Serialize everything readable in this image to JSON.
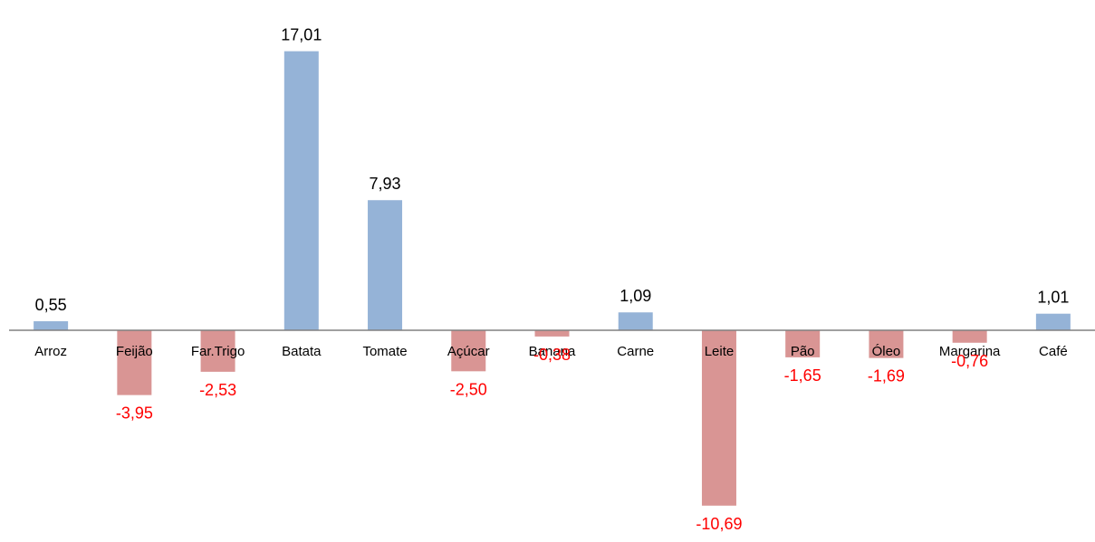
{
  "chart_data": {
    "type": "bar",
    "title": "",
    "xlabel": "",
    "ylabel": "",
    "categories": [
      "Arroz",
      "Feijão",
      "Far.Trigo",
      "Batata",
      "Tomate",
      "Açúcar",
      "Banana",
      "Carne",
      "Leite",
      "Pão",
      "Óleo",
      "Margarina",
      "Café"
    ],
    "values": [
      0.55,
      -3.95,
      -2.53,
      17.01,
      7.93,
      -2.5,
      -0.38,
      1.09,
      -10.69,
      -1.65,
      -1.69,
      -0.76,
      1.01
    ],
    "value_labels": [
      "0,55",
      "-3,95",
      "-2,53",
      "17,01",
      "7,93",
      "-2,50",
      "-0,38",
      "1,09",
      "-10,69",
      "-1,65",
      "-1,69",
      "-0,76",
      "1,01"
    ],
    "ylim": [
      -11,
      17.5
    ],
    "grid": false,
    "legend": "none",
    "colors": {
      "positive_bar": "#95b3d7",
      "negative_bar": "#d99594",
      "positive_label": "#000000",
      "negative_label": "#ff0000",
      "axis": "#808080"
    }
  }
}
